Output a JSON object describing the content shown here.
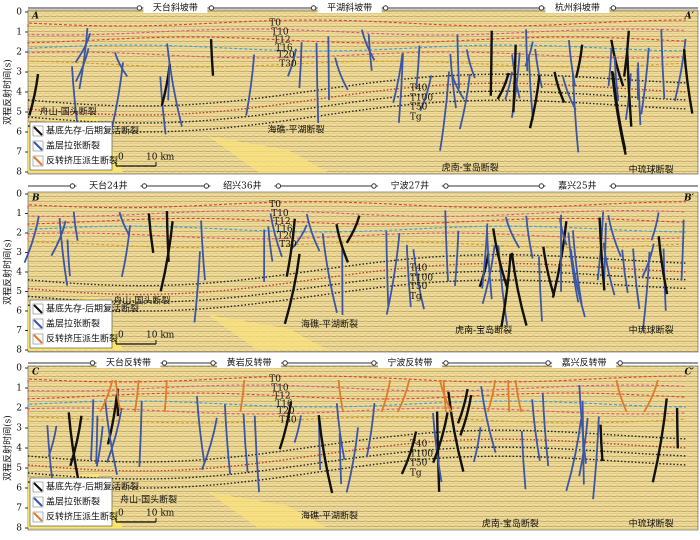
{
  "ylabel": "双程反射时间(s)",
  "legend": [
    "基底先存-后期复活断裂",
    "盖层拉张断裂",
    "反转挤压派生断裂"
  ],
  "scale": [
    "0",
    "10 km"
  ],
  "panels": [
    {
      "corners": [
        "A",
        "A′"
      ],
      "zones": [
        "天台斜坡带",
        "平湖斜坡带",
        "杭州斜坡带"
      ],
      "yticks": [
        0,
        1,
        2,
        3,
        4,
        5,
        6,
        7,
        8
      ],
      "horizons": [
        "T0",
        "T10",
        "T12",
        "T16",
        "T20",
        "T30",
        "T40",
        "T100",
        "T50",
        "Tg"
      ],
      "faults": [
        "舟山-国头断裂",
        "海礁-平湖断裂",
        "虎南-宝岛断裂",
        "中琉球断裂"
      ]
    },
    {
      "corners": [
        "B",
        "B′"
      ],
      "zones": [
        "天台24井",
        "绍兴36井",
        "宁波27井",
        "嘉兴25井"
      ],
      "yticks": [
        0,
        1,
        2,
        3,
        4,
        5,
        6,
        7,
        8
      ],
      "horizons": [
        "T0",
        "T10",
        "T12",
        "T16",
        "T20",
        "T30",
        "T40",
        "T100",
        "T50",
        "Tg"
      ],
      "faults": [
        "舟山-国头断裂",
        "海礁-平湖断裂",
        "虎南-宝岛断裂",
        "中琉球断裂"
      ]
    },
    {
      "corners": [
        "C",
        "C′"
      ],
      "zones": [
        "天台反转带",
        "黄岩反转带",
        "宁波反转带",
        "嘉兴反转带"
      ],
      "yticks": [
        0,
        1,
        2,
        3,
        4,
        5,
        6,
        7,
        8
      ],
      "horizons": [
        "T0",
        "T10",
        "T12",
        "T16",
        "T20",
        "T30",
        "T40",
        "T100",
        "T50",
        "Tg"
      ],
      "faults": [
        "舟山-国头断裂",
        "海礁-平湖断裂",
        "虎南-宝岛断裂",
        "中琉球断裂"
      ]
    }
  ]
}
